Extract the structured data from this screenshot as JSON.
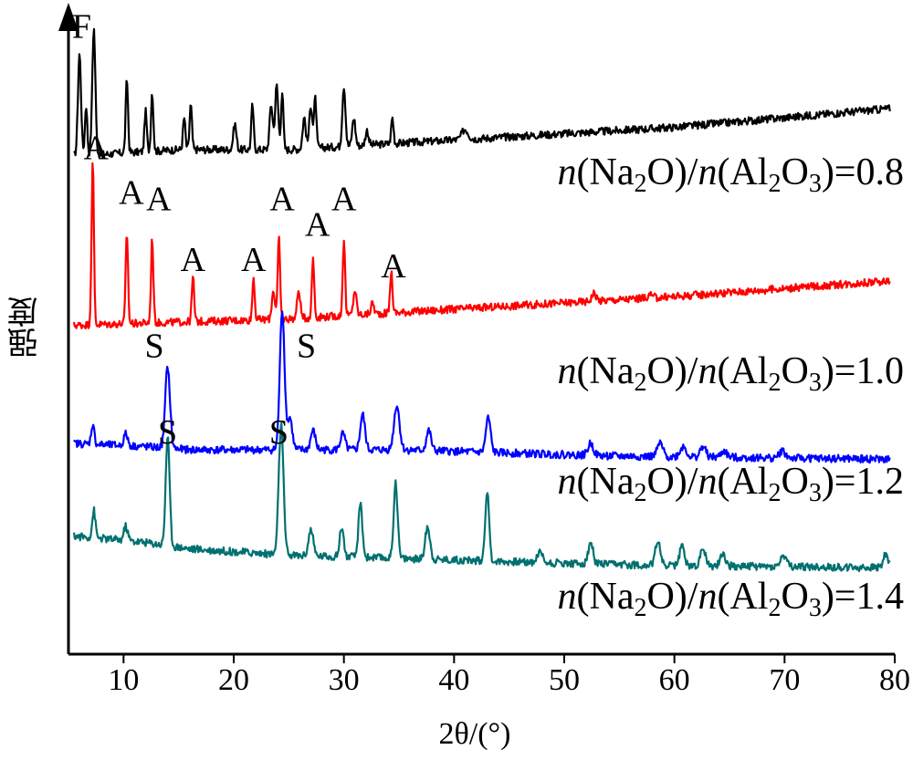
{
  "chart_data": {
    "type": "line",
    "xlabel": "2θ/(°)",
    "ylabel": "强度",
    "xlim": [
      5,
      80
    ],
    "x_ticks": [
      "10",
      "20",
      "30",
      "40",
      "50",
      "60",
      "70",
      "80"
    ],
    "colors": {
      "black": "#000000",
      "red": "#ff0000",
      "blue": "#0000ff",
      "teal": "#007070"
    },
    "series": [
      {
        "name": "n(Na2O)/n(Al2O3)=0.8",
        "label_parts": [
          "n",
          "(Na",
          "2",
          "O)/",
          "n",
          "(Al",
          "2",
          "O",
          "3",
          ")=0.8"
        ],
        "color": "#000000",
        "baseline": [
          [
            5.5,
            0.78
          ],
          [
            15,
            0.79
          ],
          [
            25,
            0.79
          ],
          [
            35,
            0.8
          ],
          [
            45,
            0.81
          ],
          [
            60,
            0.825
          ],
          [
            80,
            0.855
          ]
        ],
        "peaks": [
          [
            6.0,
            0.94,
            0.2
          ],
          [
            6.6,
            0.86,
            0.15
          ],
          [
            7.3,
            0.98,
            0.2
          ],
          [
            10.3,
            0.9,
            0.15
          ],
          [
            12.0,
            0.85,
            0.15
          ],
          [
            12.6,
            0.88,
            0.15
          ],
          [
            15.5,
            0.84,
            0.15
          ],
          [
            16.1,
            0.86,
            0.15
          ],
          [
            20.1,
            0.83,
            0.2
          ],
          [
            21.7,
            0.86,
            0.15
          ],
          [
            23.4,
            0.86,
            0.2
          ],
          [
            23.9,
            0.89,
            0.2
          ],
          [
            24.4,
            0.88,
            0.15
          ],
          [
            26.4,
            0.84,
            0.2
          ],
          [
            27.0,
            0.86,
            0.2
          ],
          [
            27.4,
            0.87,
            0.15
          ],
          [
            30.0,
            0.89,
            0.2
          ],
          [
            30.9,
            0.84,
            0.2
          ],
          [
            32.1,
            0.82,
            0.2
          ],
          [
            34.4,
            0.84,
            0.15
          ],
          [
            41.0,
            0.822,
            0.4
          ]
        ]
      },
      {
        "name": "n(Na2O)/n(Al2O3)=1.0",
        "label_parts": [
          "n",
          "(Na",
          "2",
          "O)/",
          "n",
          "(Al",
          "2",
          "O",
          "3",
          ")=1.0"
        ],
        "color": "#ff0000",
        "baseline": [
          [
            5.5,
            0.515
          ],
          [
            15,
            0.52
          ],
          [
            25,
            0.525
          ],
          [
            35,
            0.535
          ],
          [
            45,
            0.545
          ],
          [
            60,
            0.56
          ],
          [
            80,
            0.585
          ]
        ],
        "peaks": [
          [
            7.2,
            0.77,
            0.15
          ],
          [
            10.3,
            0.66,
            0.15
          ],
          [
            12.6,
            0.65,
            0.15
          ],
          [
            16.3,
            0.59,
            0.15
          ],
          [
            21.8,
            0.59,
            0.15
          ],
          [
            23.6,
            0.57,
            0.2
          ],
          [
            24.1,
            0.65,
            0.15
          ],
          [
            25.9,
            0.57,
            0.2
          ],
          [
            27.2,
            0.62,
            0.15
          ],
          [
            30.0,
            0.65,
            0.15
          ],
          [
            31.0,
            0.57,
            0.2
          ],
          [
            32.6,
            0.55,
            0.2
          ],
          [
            34.3,
            0.6,
            0.15
          ],
          [
            52.7,
            0.565,
            0.3
          ],
          [
            57.8,
            0.562,
            0.3
          ],
          [
            69.5,
            0.572,
            0.3
          ]
        ]
      },
      {
        "name": "n(Na2O)/n(Al2O3)=1.2",
        "label_parts": [
          "n",
          "(Na",
          "2",
          "O)/",
          "n",
          "(Al",
          "2",
          "O",
          "3",
          ")=1.2"
        ],
        "color": "#0000ff",
        "baseline": [
          [
            5.5,
            0.33
          ],
          [
            12,
            0.325
          ],
          [
            16,
            0.32
          ],
          [
            25,
            0.32
          ],
          [
            35,
            0.32
          ],
          [
            45,
            0.315
          ],
          [
            55,
            0.31
          ],
          [
            80,
            0.305
          ]
        ],
        "peaks": [
          [
            7.2,
            0.36,
            0.2
          ],
          [
            10.2,
            0.345,
            0.25
          ],
          [
            14.0,
            0.45,
            0.3
          ],
          [
            24.4,
            0.54,
            0.3
          ],
          [
            25.1,
            0.37,
            0.3
          ],
          [
            27.2,
            0.35,
            0.3
          ],
          [
            29.9,
            0.345,
            0.3
          ],
          [
            31.7,
            0.375,
            0.3
          ],
          [
            34.8,
            0.39,
            0.35
          ],
          [
            37.7,
            0.35,
            0.3
          ],
          [
            43.1,
            0.37,
            0.3
          ],
          [
            52.4,
            0.33,
            0.35
          ],
          [
            58.7,
            0.33,
            0.35
          ],
          [
            60.8,
            0.325,
            0.4
          ],
          [
            62.6,
            0.325,
            0.35
          ],
          [
            64.5,
            0.318,
            0.35
          ],
          [
            69.8,
            0.318,
            0.4
          ]
        ]
      },
      {
        "name": "n(Na2O)/n(Al2O3)=1.4",
        "label_parts": [
          "n",
          "(Na",
          "2",
          "O)/",
          "n",
          "(Al",
          "2",
          "O",
          "3",
          ")=1.4"
        ],
        "color": "#007070",
        "baseline": [
          [
            5.5,
            0.185
          ],
          [
            12,
            0.175
          ],
          [
            16,
            0.165
          ],
          [
            25,
            0.155
          ],
          [
            35,
            0.15
          ],
          [
            45,
            0.145
          ],
          [
            55,
            0.14
          ],
          [
            80,
            0.135
          ]
        ],
        "peaks": [
          [
            7.3,
            0.225,
            0.2
          ],
          [
            10.2,
            0.2,
            0.25
          ],
          [
            14.0,
            0.34,
            0.25
          ],
          [
            24.3,
            0.36,
            0.3
          ],
          [
            27.0,
            0.195,
            0.3
          ],
          [
            29.8,
            0.2,
            0.25
          ],
          [
            31.5,
            0.235,
            0.25
          ],
          [
            34.7,
            0.27,
            0.25
          ],
          [
            37.6,
            0.2,
            0.3
          ],
          [
            43.0,
            0.255,
            0.25
          ],
          [
            47.8,
            0.16,
            0.35
          ],
          [
            52.4,
            0.175,
            0.3
          ],
          [
            58.5,
            0.18,
            0.3
          ],
          [
            60.7,
            0.17,
            0.3
          ],
          [
            62.6,
            0.168,
            0.3
          ],
          [
            64.4,
            0.16,
            0.3
          ],
          [
            69.9,
            0.155,
            0.35
          ],
          [
            79.2,
            0.158,
            0.3
          ]
        ]
      }
    ],
    "annotations": [
      {
        "text": "F",
        "x": 6.2,
        "y": 0.965
      },
      {
        "text": "A",
        "x": 7.5,
        "y": 0.775
      },
      {
        "text": "A",
        "x": 10.7,
        "y": 0.705
      },
      {
        "text": "A",
        "x": 13.2,
        "y": 0.695
      },
      {
        "text": "A",
        "x": 16.3,
        "y": 0.6
      },
      {
        "text": "A",
        "x": 21.8,
        "y": 0.6
      },
      {
        "text": "A",
        "x": 24.4,
        "y": 0.695
      },
      {
        "text": "A",
        "x": 27.6,
        "y": 0.655
      },
      {
        "text": "A",
        "x": 30.0,
        "y": 0.695
      },
      {
        "text": "A",
        "x": 34.5,
        "y": 0.59
      },
      {
        "text": "S",
        "x": 12.8,
        "y": 0.465
      },
      {
        "text": "S",
        "x": 26.6,
        "y": 0.465
      },
      {
        "text": "S",
        "x": 14.0,
        "y": 0.33
      },
      {
        "text": "S",
        "x": 24.1,
        "y": 0.33
      }
    ]
  }
}
